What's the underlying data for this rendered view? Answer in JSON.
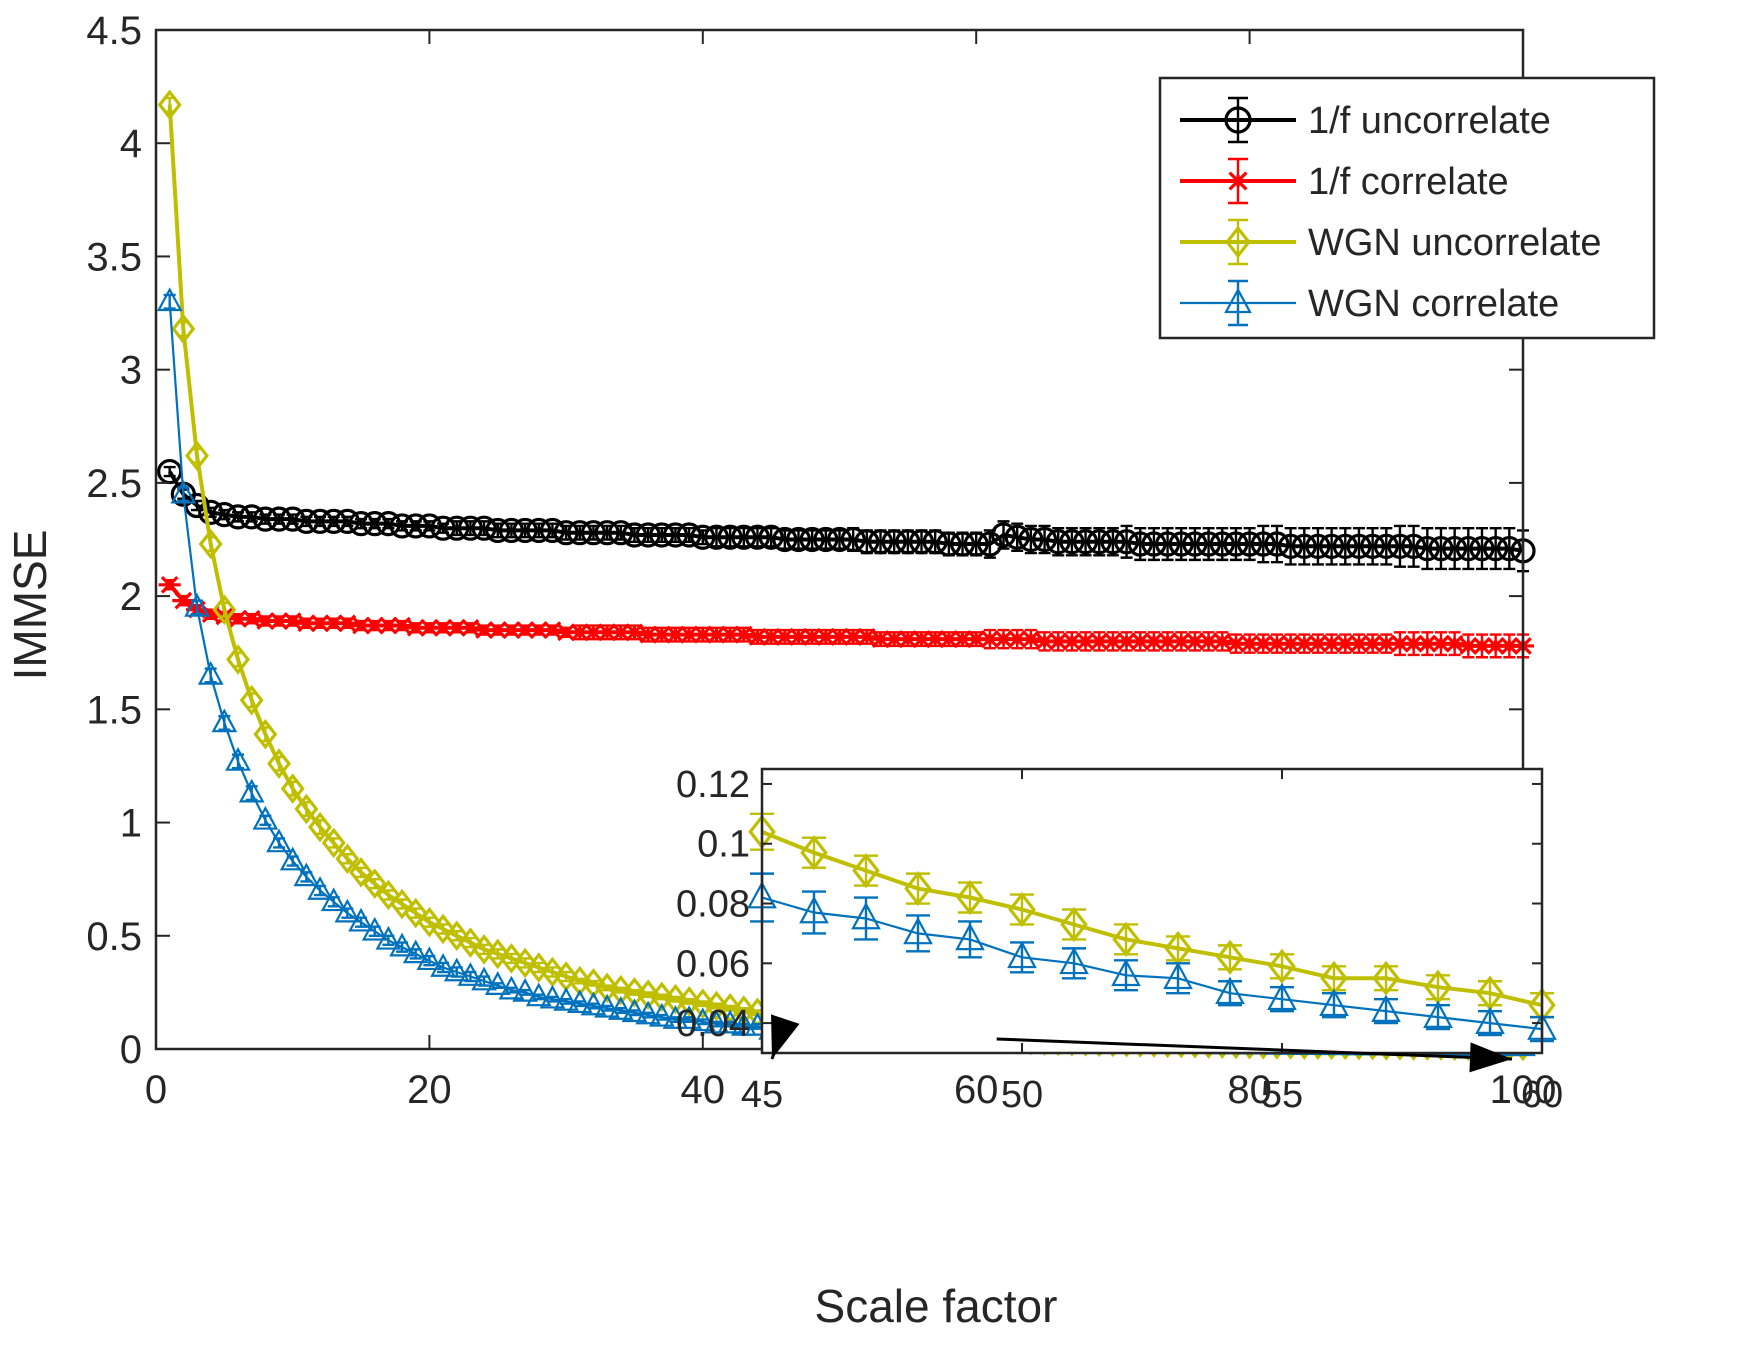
{
  "chart_data": {
    "type": "line",
    "xlabel": "Scale factor",
    "ylabel": "IMMSE",
    "xlim": [
      0,
      100
    ],
    "ylim": [
      0,
      4.5
    ],
    "x_ticks": [
      "0",
      "20",
      "40",
      "60",
      "80",
      "100"
    ],
    "y_ticks": [
      "0",
      "0.5",
      "1",
      "1.5",
      "2",
      "2.5",
      "3",
      "3.5",
      "4",
      "4.5"
    ],
    "legend_position": "top-right",
    "grid": false,
    "x": [
      1,
      2,
      3,
      4,
      5,
      6,
      7,
      8,
      9,
      10,
      11,
      12,
      13,
      14,
      15,
      16,
      17,
      18,
      19,
      20,
      21,
      22,
      23,
      24,
      25,
      26,
      27,
      28,
      29,
      30,
      31,
      32,
      33,
      34,
      35,
      36,
      37,
      38,
      39,
      40,
      41,
      42,
      43,
      44,
      45,
      46,
      47,
      48,
      49,
      50,
      51,
      52,
      53,
      54,
      55,
      56,
      57,
      58,
      59,
      60,
      61,
      62,
      63,
      64,
      65,
      66,
      67,
      68,
      69,
      70,
      71,
      72,
      73,
      74,
      75,
      76,
      77,
      78,
      79,
      80,
      81,
      82,
      83,
      84,
      85,
      86,
      87,
      88,
      89,
      90,
      91,
      92,
      93,
      94,
      95,
      96,
      97,
      98,
      99,
      100
    ],
    "series": [
      {
        "name": "1/f uncorrelate",
        "color": "#000000",
        "marker": "circle",
        "values": [
          2.55,
          2.45,
          2.4,
          2.37,
          2.36,
          2.35,
          2.35,
          2.34,
          2.34,
          2.34,
          2.33,
          2.33,
          2.33,
          2.33,
          2.32,
          2.32,
          2.32,
          2.31,
          2.31,
          2.31,
          2.3,
          2.3,
          2.3,
          2.3,
          2.29,
          2.29,
          2.29,
          2.29,
          2.29,
          2.28,
          2.28,
          2.28,
          2.28,
          2.28,
          2.27,
          2.27,
          2.27,
          2.27,
          2.27,
          2.26,
          2.26,
          2.26,
          2.26,
          2.26,
          2.26,
          2.25,
          2.25,
          2.25,
          2.25,
          2.25,
          2.25,
          2.24,
          2.24,
          2.24,
          2.24,
          2.24,
          2.24,
          2.23,
          2.23,
          2.23,
          2.23,
          2.27,
          2.26,
          2.25,
          2.25,
          2.24,
          2.24,
          2.24,
          2.24,
          2.24,
          2.24,
          2.23,
          2.23,
          2.23,
          2.23,
          2.23,
          2.23,
          2.23,
          2.23,
          2.23,
          2.23,
          2.23,
          2.22,
          2.22,
          2.22,
          2.22,
          2.22,
          2.22,
          2.22,
          2.22,
          2.22,
          2.22,
          2.21,
          2.21,
          2.21,
          2.21,
          2.21,
          2.21,
          2.21,
          2.2
        ],
        "error": [
          0.02,
          0.02,
          0.02,
          0.02,
          0.02,
          0.02,
          0.02,
          0.02,
          0.02,
          0.02,
          0.02,
          0.02,
          0.02,
          0.02,
          0.02,
          0.02,
          0.02,
          0.02,
          0.02,
          0.02,
          0.02,
          0.03,
          0.03,
          0.03,
          0.03,
          0.03,
          0.03,
          0.03,
          0.03,
          0.03,
          0.03,
          0.03,
          0.03,
          0.03,
          0.03,
          0.03,
          0.03,
          0.03,
          0.03,
          0.03,
          0.04,
          0.04,
          0.04,
          0.04,
          0.04,
          0.04,
          0.04,
          0.04,
          0.04,
          0.04,
          0.05,
          0.05,
          0.05,
          0.05,
          0.05,
          0.05,
          0.05,
          0.05,
          0.05,
          0.05,
          0.06,
          0.06,
          0.06,
          0.06,
          0.06,
          0.06,
          0.06,
          0.06,
          0.06,
          0.06,
          0.07,
          0.07,
          0.07,
          0.07,
          0.07,
          0.07,
          0.07,
          0.07,
          0.07,
          0.07,
          0.08,
          0.08,
          0.08,
          0.08,
          0.08,
          0.08,
          0.08,
          0.08,
          0.08,
          0.08,
          0.09,
          0.09,
          0.09,
          0.09,
          0.09,
          0.09,
          0.09,
          0.09,
          0.09,
          0.09
        ]
      },
      {
        "name": "1/f correlate",
        "color": "#ff0000",
        "marker": "asterisk",
        "values": [
          2.05,
          1.98,
          1.94,
          1.92,
          1.91,
          1.9,
          1.9,
          1.89,
          1.89,
          1.89,
          1.88,
          1.88,
          1.88,
          1.88,
          1.87,
          1.87,
          1.87,
          1.87,
          1.86,
          1.86,
          1.86,
          1.86,
          1.86,
          1.85,
          1.85,
          1.85,
          1.85,
          1.85,
          1.85,
          1.84,
          1.84,
          1.84,
          1.84,
          1.84,
          1.84,
          1.83,
          1.83,
          1.83,
          1.83,
          1.83,
          1.83,
          1.83,
          1.83,
          1.82,
          1.82,
          1.82,
          1.82,
          1.82,
          1.82,
          1.82,
          1.82,
          1.82,
          1.81,
          1.81,
          1.81,
          1.81,
          1.81,
          1.81,
          1.81,
          1.81,
          1.81,
          1.81,
          1.81,
          1.81,
          1.8,
          1.8,
          1.8,
          1.8,
          1.8,
          1.8,
          1.8,
          1.8,
          1.8,
          1.8,
          1.8,
          1.8,
          1.8,
          1.8,
          1.79,
          1.79,
          1.79,
          1.79,
          1.79,
          1.79,
          1.79,
          1.79,
          1.79,
          1.79,
          1.79,
          1.79,
          1.79,
          1.79,
          1.79,
          1.79,
          1.79,
          1.78,
          1.78,
          1.78,
          1.78,
          1.78
        ],
        "error": [
          0.02,
          0.02,
          0.02,
          0.02,
          0.02,
          0.02,
          0.02,
          0.02,
          0.02,
          0.02,
          0.02,
          0.02,
          0.02,
          0.02,
          0.02,
          0.02,
          0.02,
          0.02,
          0.02,
          0.02,
          0.02,
          0.02,
          0.02,
          0.02,
          0.02,
          0.02,
          0.02,
          0.02,
          0.02,
          0.02,
          0.03,
          0.03,
          0.03,
          0.03,
          0.03,
          0.03,
          0.03,
          0.03,
          0.03,
          0.03,
          0.03,
          0.03,
          0.03,
          0.03,
          0.03,
          0.03,
          0.03,
          0.03,
          0.03,
          0.03,
          0.03,
          0.03,
          0.03,
          0.03,
          0.03,
          0.03,
          0.03,
          0.03,
          0.03,
          0.03,
          0.04,
          0.04,
          0.04,
          0.04,
          0.04,
          0.04,
          0.04,
          0.04,
          0.04,
          0.04,
          0.04,
          0.04,
          0.04,
          0.04,
          0.04,
          0.04,
          0.04,
          0.04,
          0.04,
          0.04,
          0.04,
          0.04,
          0.04,
          0.04,
          0.04,
          0.04,
          0.04,
          0.04,
          0.04,
          0.04,
          0.05,
          0.05,
          0.05,
          0.05,
          0.05,
          0.05,
          0.05,
          0.05,
          0.05,
          0.05
        ]
      },
      {
        "name": "WGN uncorrelate",
        "color": "#bfbf00",
        "marker": "diamond",
        "values": [
          4.17,
          3.18,
          2.62,
          2.23,
          1.94,
          1.72,
          1.54,
          1.39,
          1.26,
          1.15,
          1.06,
          0.98,
          0.91,
          0.84,
          0.78,
          0.73,
          0.68,
          0.64,
          0.6,
          0.56,
          0.53,
          0.5,
          0.47,
          0.44,
          0.42,
          0.4,
          0.38,
          0.36,
          0.34,
          0.32,
          0.3,
          0.29,
          0.27,
          0.26,
          0.25,
          0.24,
          0.23,
          0.22,
          0.21,
          0.2,
          0.19,
          0.18,
          0.17,
          0.16,
          0.104,
          0.097,
          0.09,
          0.085,
          0.082,
          0.078,
          0.073,
          0.068,
          0.065,
          0.062,
          0.059,
          0.055,
          0.055,
          0.053,
          0.05,
          0.047,
          0.045,
          0.043,
          0.041,
          0.039,
          0.037,
          0.036,
          0.034,
          0.033,
          0.032,
          0.031,
          0.03,
          0.029,
          0.028,
          0.027,
          0.026,
          0.025,
          0.024,
          0.023,
          0.022,
          0.021,
          0.021,
          0.02,
          0.02,
          0.019,
          0.019,
          0.018,
          0.018,
          0.017,
          0.017,
          0.016,
          0.016,
          0.015,
          0.015,
          0.015,
          0.014,
          0.014,
          0.014,
          0.013,
          0.013,
          0.013
        ],
        "error": [
          0.03,
          0.03,
          0.03,
          0.03,
          0.03,
          0.03,
          0.03,
          0.03,
          0.03,
          0.03,
          0.03,
          0.03,
          0.02,
          0.02,
          0.02,
          0.02,
          0.02,
          0.02,
          0.02,
          0.02,
          0.02,
          0.02,
          0.02,
          0.02,
          0.02,
          0.02,
          0.02,
          0.02,
          0.02,
          0.02,
          0.01,
          0.01,
          0.01,
          0.01,
          0.01,
          0.01,
          0.01,
          0.01,
          0.01,
          0.01,
          0.01,
          0.01,
          0.01,
          0.01,
          0.005,
          0.005,
          0.005,
          0.005,
          0.005,
          0.005,
          0.005,
          0.005,
          0.005,
          0.004,
          0.004,
          0.004,
          0.004,
          0.004,
          0.004,
          0.004,
          0.004,
          0.004,
          0.004,
          0.004,
          0.004,
          0.004,
          0.004,
          0.004,
          0.004,
          0.004,
          0.004,
          0.004,
          0.004,
          0.004,
          0.004,
          0.004,
          0.004,
          0.004,
          0.004,
          0.004,
          0.004,
          0.004,
          0.004,
          0.004,
          0.004,
          0.004,
          0.004,
          0.004,
          0.004,
          0.004,
          0.004,
          0.004,
          0.004,
          0.004,
          0.004,
          0.004,
          0.004,
          0.004,
          0.004,
          0.004
        ]
      },
      {
        "name": "WGN correlate",
        "color": "#0072bd",
        "marker": "triangle",
        "values": [
          3.3,
          2.45,
          1.95,
          1.65,
          1.44,
          1.27,
          1.13,
          1.01,
          0.91,
          0.83,
          0.76,
          0.7,
          0.65,
          0.6,
          0.56,
          0.52,
          0.48,
          0.45,
          0.42,
          0.39,
          0.36,
          0.34,
          0.32,
          0.3,
          0.28,
          0.26,
          0.25,
          0.23,
          0.22,
          0.21,
          0.2,
          0.19,
          0.18,
          0.17,
          0.16,
          0.15,
          0.14,
          0.13,
          0.13,
          0.12,
          0.11,
          0.11,
          0.1,
          0.1,
          0.082,
          0.077,
          0.075,
          0.07,
          0.068,
          0.062,
          0.06,
          0.056,
          0.055,
          0.05,
          0.048,
          0.046,
          0.044,
          0.042,
          0.04,
          0.037,
          0.035,
          0.033,
          0.032,
          0.031,
          0.03,
          0.029,
          0.028,
          0.027,
          0.026,
          0.025,
          0.024,
          0.023,
          0.022,
          0.021,
          0.02,
          0.019,
          0.019,
          0.018,
          0.018,
          0.017,
          0.017,
          0.016,
          0.016,
          0.015,
          0.015,
          0.014,
          0.014,
          0.013,
          0.013,
          0.013,
          0.012,
          0.012,
          0.012,
          0.011,
          0.011,
          0.011,
          0.011,
          0.01,
          0.01,
          0.01
        ],
        "error": [
          0.03,
          0.03,
          0.03,
          0.03,
          0.03,
          0.03,
          0.03,
          0.02,
          0.02,
          0.02,
          0.02,
          0.02,
          0.02,
          0.02,
          0.02,
          0.02,
          0.02,
          0.02,
          0.02,
          0.02,
          0.02,
          0.02,
          0.02,
          0.02,
          0.01,
          0.01,
          0.01,
          0.01,
          0.01,
          0.01,
          0.01,
          0.01,
          0.01,
          0.01,
          0.01,
          0.01,
          0.01,
          0.01,
          0.01,
          0.01,
          0.01,
          0.01,
          0.01,
          0.01,
          0.008,
          0.007,
          0.007,
          0.006,
          0.006,
          0.005,
          0.005,
          0.005,
          0.005,
          0.004,
          0.004,
          0.004,
          0.004,
          0.004,
          0.004,
          0.004,
          0.004,
          0.004,
          0.004,
          0.004,
          0.004,
          0.004,
          0.004,
          0.004,
          0.004,
          0.004,
          0.004,
          0.004,
          0.004,
          0.004,
          0.004,
          0.004,
          0.004,
          0.004,
          0.004,
          0.004,
          0.004,
          0.004,
          0.004,
          0.004,
          0.004,
          0.004,
          0.004,
          0.004,
          0.004,
          0.004,
          0.004,
          0.004,
          0.004,
          0.004,
          0.004,
          0.004,
          0.004,
          0.004,
          0.004,
          0.004
        ]
      }
    ],
    "inset": {
      "xlim": [
        45,
        60
      ],
      "ylim": [
        0.03,
        0.125
      ],
      "x_ticks": [
        "45",
        "50",
        "55",
        "60"
      ],
      "y_ticks": [
        "0.04",
        "0.06",
        "0.08",
        "0.1",
        "0.12"
      ],
      "x": [
        45,
        46,
        47,
        48,
        49,
        50,
        51,
        52,
        53,
        54,
        55,
        56,
        57,
        58,
        59,
        60
      ],
      "series": [
        {
          "name": "WGN uncorrelate",
          "values": [
            0.104,
            0.097,
            0.091,
            0.085,
            0.082,
            0.078,
            0.073,
            0.068,
            0.065,
            0.062,
            0.059,
            0.055,
            0.055,
            0.052,
            0.05,
            0.046
          ],
          "error": [
            0.006,
            0.005,
            0.005,
            0.005,
            0.005,
            0.005,
            0.005,
            0.005,
            0.004,
            0.004,
            0.004,
            0.004,
            0.004,
            0.004,
            0.004,
            0.004
          ]
        },
        {
          "name": "WGN correlate",
          "values": [
            0.082,
            0.077,
            0.075,
            0.07,
            0.068,
            0.062,
            0.06,
            0.056,
            0.055,
            0.05,
            0.048,
            0.046,
            0.044,
            0.042,
            0.04,
            0.038
          ],
          "error": [
            0.008,
            0.007,
            0.007,
            0.006,
            0.006,
            0.005,
            0.005,
            0.005,
            0.005,
            0.004,
            0.004,
            0.004,
            0.004,
            0.004,
            0.004,
            0.004
          ]
        }
      ]
    }
  }
}
